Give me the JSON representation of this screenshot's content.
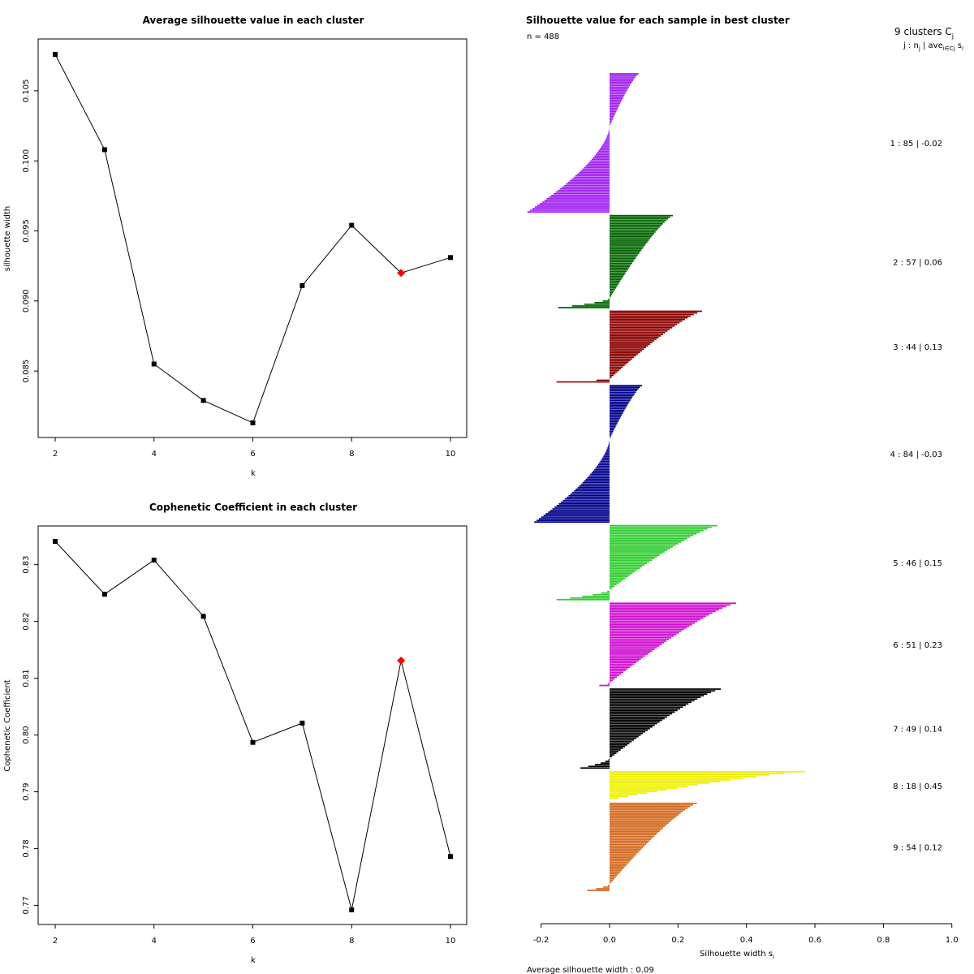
{
  "chart_data": [
    {
      "type": "line",
      "title": "Average silhouette value in each cluster",
      "xlabel": "k",
      "ylabel": "silhouette width",
      "x": [
        2,
        3,
        4,
        5,
        6,
        7,
        8,
        9,
        10
      ],
      "values": [
        0.1076,
        0.1008,
        0.0855,
        0.0829,
        0.0813,
        0.0911,
        0.0954,
        0.092,
        0.0931
      ],
      "highlight_k": 9,
      "highlight_color": "#ff0000",
      "xticks": [
        "2",
        "4",
        "6",
        "8",
        "10"
      ],
      "yticks": [
        "0.085",
        "0.090",
        "0.095",
        "0.100",
        "0.105"
      ],
      "xlim": [
        2,
        10
      ],
      "ylim": [
        0.0813,
        0.1076
      ]
    },
    {
      "type": "line",
      "title": "Cophenetic Coefficient in each cluster",
      "xlabel": "k",
      "ylabel": "Cophenetic Coefficient",
      "x": [
        2,
        3,
        4,
        5,
        6,
        7,
        8,
        9,
        10
      ],
      "values": [
        0.8341,
        0.8248,
        0.8308,
        0.8209,
        0.7987,
        0.8021,
        0.7692,
        0.8131,
        0.7786
      ],
      "highlight_k": 9,
      "highlight_color": "#ff0000",
      "xticks": [
        "2",
        "4",
        "6",
        "8",
        "10"
      ],
      "yticks": [
        "0.77",
        "0.78",
        "0.79",
        "0.80",
        "0.81",
        "0.82",
        "0.83"
      ],
      "xlim": [
        2,
        10
      ],
      "ylim": [
        0.7692,
        0.8341
      ]
    },
    {
      "type": "silhouette",
      "title": "Silhouette value for each sample in best cluster",
      "n_label": "n = 488",
      "header_line1": "9  clusters  C",
      "header_sub1": "j",
      "header_line2": "j :  n",
      "header_sub2": "j",
      "header_line2b": " | ave",
      "header_sub3": "i∈Cj",
      "header_line2c": " s",
      "header_sub4": "i",
      "xlabel_main": "Silhouette width s",
      "xlabel_sub": "i",
      "xlim": [
        -0.2,
        1.0
      ],
      "xticks": [
        "-0.2",
        "0.0",
        "0.2",
        "0.4",
        "0.6",
        "0.8",
        "1.0"
      ],
      "average_text": "Average silhouette width :  0.09",
      "clusters": [
        {
          "label": "1 :   85  |  -0.02",
          "n": 85,
          "color": "#a020f0",
          "max": 0.085,
          "min": -0.24,
          "zero_frac": 0.38
        },
        {
          "label": "2 :   57  |  0.06",
          "n": 57,
          "color": "#006400",
          "max": 0.185,
          "min": -0.15,
          "zero_frac": 0.9
        },
        {
          "label": "3 :   44  |  0.13",
          "n": 44,
          "color": "#8b0000",
          "max": 0.27,
          "min": -0.155,
          "zero_frac": 0.96
        },
        {
          "label": "4 :   84  |  -0.03",
          "n": 84,
          "color": "#00008b",
          "max": 0.095,
          "min": -0.22,
          "zero_frac": 0.39
        },
        {
          "label": "5 :   46  |  0.15",
          "n": 46,
          "color": "#32cd32",
          "max": 0.315,
          "min": -0.155,
          "zero_frac": 0.87
        },
        {
          "label": "6 :   51  |  0.23",
          "n": 51,
          "color": "#d010d0",
          "max": 0.37,
          "min": -0.03,
          "zero_frac": 0.97
        },
        {
          "label": "7 :   49  |  0.14",
          "n": 49,
          "color": "#000000",
          "max": 0.325,
          "min": -0.085,
          "zero_frac": 0.88
        },
        {
          "label": "8 :   18  |  0.45",
          "n": 18,
          "color": "#f0f000",
          "max": 0.57,
          "min": 0.25,
          "zero_frac": 1.0
        },
        {
          "label": "9 :   54  |  0.12",
          "n": 54,
          "color": "#d2691e",
          "max": 0.255,
          "min": -0.065,
          "zero_frac": 0.93
        }
      ]
    }
  ]
}
